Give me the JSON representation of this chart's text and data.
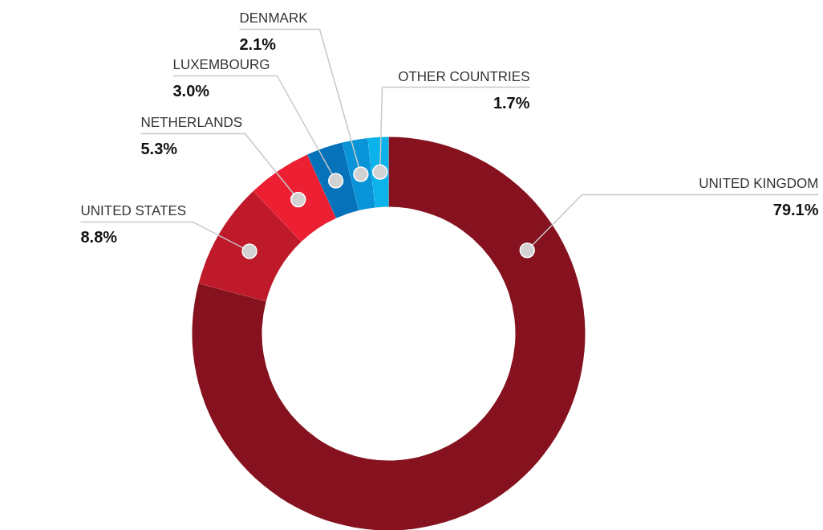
{
  "chart_data": {
    "type": "donut",
    "categories": [
      "UNITED KINGDOM",
      "UNITED STATES",
      "NETHERLANDS",
      "LUXEMBOURG",
      "DENMARK",
      "OTHER COUNTRIES"
    ],
    "values": [
      79.1,
      8.8,
      5.3,
      3.0,
      2.1,
      1.7
    ],
    "colors": [
      "#85121e",
      "#be1a2a",
      "#ec1f33",
      "#0572b9",
      "#0a94d8",
      "#0cb3ea"
    ],
    "value_labels": [
      "79.1%",
      "8.8%",
      "5.3%",
      "3.0%",
      "2.1%",
      "1.7%"
    ]
  }
}
